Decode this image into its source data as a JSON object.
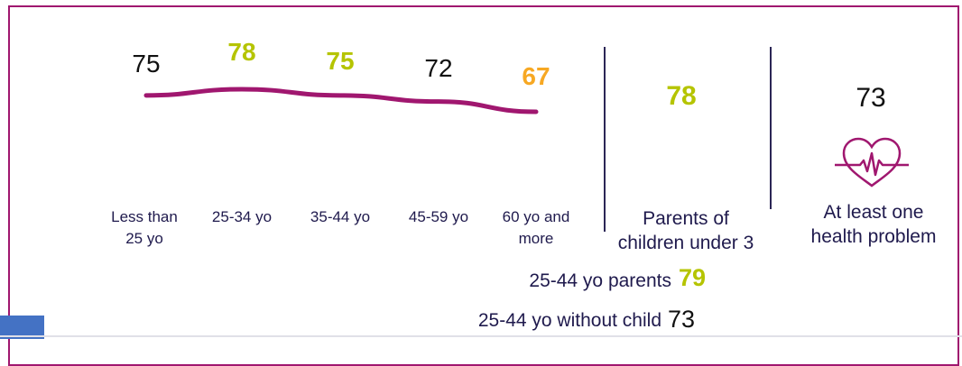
{
  "colors": {
    "frame": "#a0176f",
    "line": "#a0176f",
    "highlight_green": "#b5c400",
    "highlight_orange": "#f7a823",
    "normal": "#111111",
    "label": "#1f1a4d"
  },
  "chart_data": {
    "type": "line",
    "categories": [
      "Less than 25 yo",
      "25-34 yo",
      "35-44 yo",
      "45-59 yo",
      "60 yo and more"
    ],
    "values": [
      75,
      78,
      75,
      72,
      67
    ],
    "value_labels": [
      "75",
      "78",
      "75",
      "72",
      "67"
    ],
    "value_colors": [
      "#111111",
      "#b5c400",
      "#b5c400",
      "#111111",
      "#f7a823"
    ],
    "category_lines": [
      [
        "Less than",
        "25 yo"
      ],
      [
        "25-34 yo"
      ],
      [
        "35-44 yo"
      ],
      [
        "45-59 yo"
      ],
      [
        "60 yo and",
        "more"
      ]
    ]
  },
  "panels": {
    "parents": {
      "value": "78",
      "label_line1": "Parents of",
      "label_line2": "children under 3"
    },
    "health": {
      "value": "73",
      "label_line1": "At least one",
      "label_line2": "health problem",
      "icon": "heart-pulse-icon"
    }
  },
  "subgroups": [
    {
      "label": "25-44 yo parents",
      "value": "79"
    },
    {
      "label": "25-44 yo without child",
      "value": "73"
    }
  ]
}
